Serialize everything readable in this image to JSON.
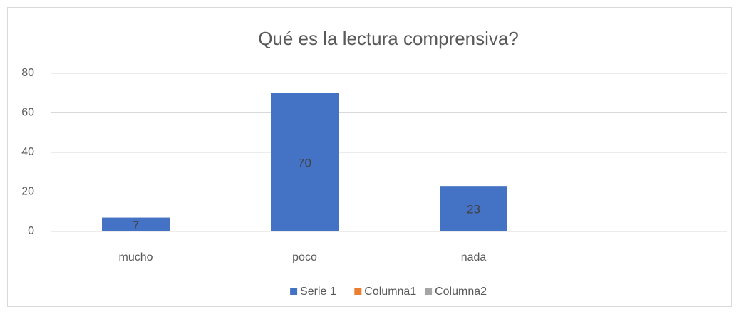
{
  "chart_data": {
    "type": "bar",
    "title": "Qué es la lectura comprensiva?",
    "categories": [
      "mucho",
      "poco",
      "nada",
      null
    ],
    "series": [
      {
        "name": "Serie 1",
        "color": "#4472c4",
        "values": [
          7,
          70,
          23,
          null
        ]
      },
      {
        "name": "Columna1",
        "color": "#ed7d31",
        "values": [
          null,
          null,
          null,
          null
        ]
      },
      {
        "name": "Columna2",
        "color": "#a5a5a5",
        "values": [
          null,
          null,
          null,
          null
        ]
      }
    ],
    "ylim": [
      0,
      80
    ],
    "yticks": [
      0,
      20,
      40,
      60,
      80
    ],
    "grid": true,
    "legend": "bottom"
  }
}
